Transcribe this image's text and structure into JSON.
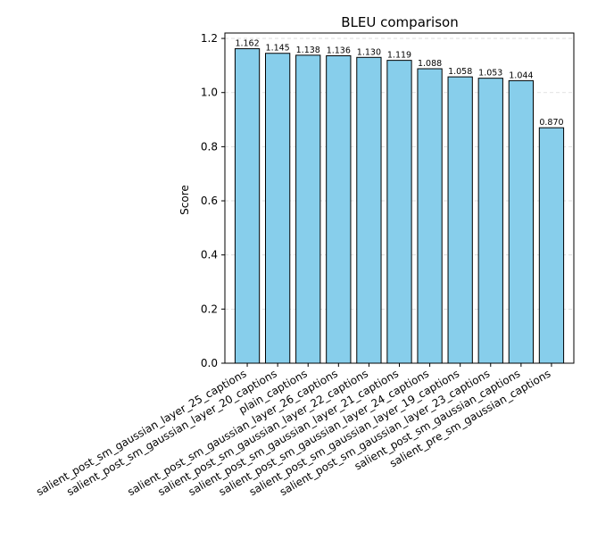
{
  "chart_data": {
    "type": "bar",
    "title": "BLEU comparison",
    "xlabel": "",
    "ylabel": "Score",
    "ylim": [
      0,
      1.22
    ],
    "yticks": [
      "0.0",
      "0.2",
      "0.4",
      "0.6",
      "0.8",
      "1.0",
      "1.2"
    ],
    "grid": "y-dashed",
    "bar_color": "#87CEEB",
    "bar_edge_color": "#000000",
    "categories": [
      "salient_post_sm_gaussian_layer_25_captions",
      "salient_post_sm_gaussian_layer_20_captions",
      "plain_captions",
      "salient_post_sm_gaussian_layer_26_captions",
      "salient_post_sm_gaussian_layer_22_captions",
      "salient_post_sm_gaussian_layer_21_captions",
      "salient_post_sm_gaussian_layer_24_captions",
      "salient_post_sm_gaussian_layer_19_captions",
      "salient_post_sm_gaussian_layer_23_captions",
      "salient_post_sm_gaussian_captions",
      "salient_pre_sm_gaussian_captions"
    ],
    "values": [
      1.162,
      1.145,
      1.138,
      1.136,
      1.13,
      1.119,
      1.088,
      1.058,
      1.053,
      1.044,
      0.87
    ],
    "value_labels": [
      "1.162",
      "1.145",
      "1.138",
      "1.136",
      "1.130",
      "1.119",
      "1.088",
      "1.058",
      "1.053",
      "1.044",
      "0.870"
    ]
  }
}
